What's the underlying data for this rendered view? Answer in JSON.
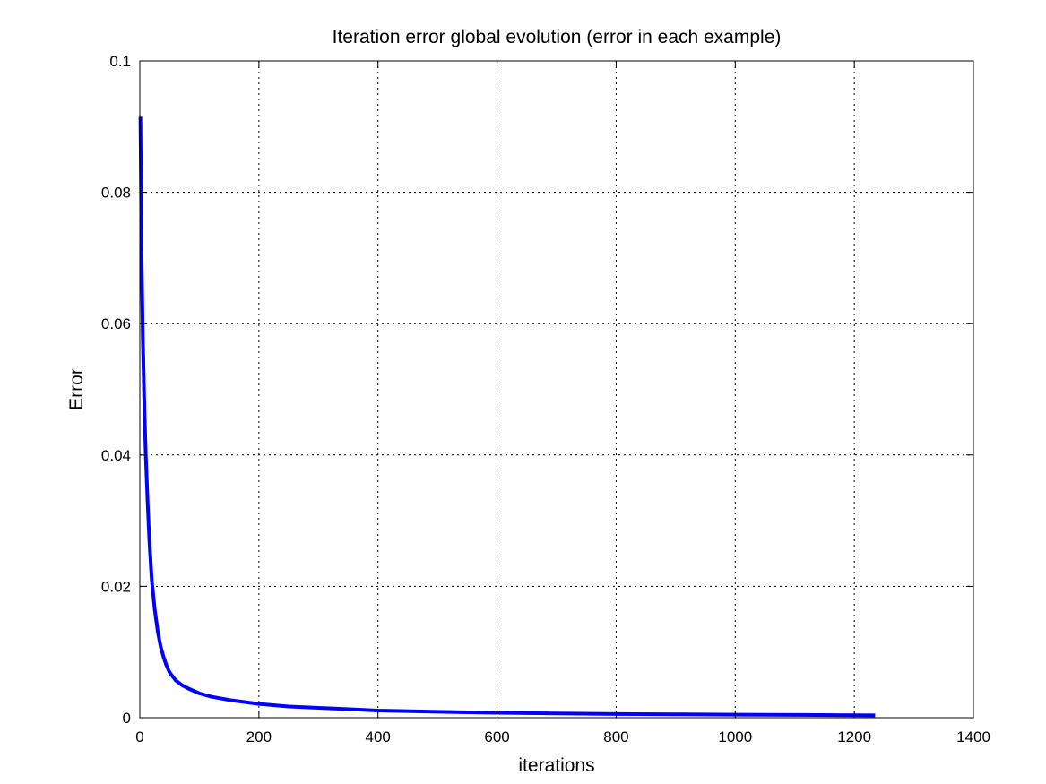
{
  "chart_data": {
    "type": "line",
    "title": "Iteration error global evolution (error in each example)",
    "xlabel": "iterations",
    "ylabel": "Error",
    "xlim": [
      0,
      1400
    ],
    "ylim": [
      0,
      0.1
    ],
    "xticks": [
      0,
      200,
      400,
      600,
      800,
      1000,
      1200,
      1400
    ],
    "yticks": [
      0,
      0.02,
      0.04,
      0.06,
      0.08,
      0.1
    ],
    "xtick_labels": [
      "0",
      "200",
      "400",
      "600",
      "800",
      "1000",
      "1200",
      "1400"
    ],
    "ytick_labels": [
      "0",
      "0.02",
      "0.04",
      "0.06",
      "0.08",
      "0.1"
    ],
    "grid": true,
    "series": [
      {
        "color": "#0000ff",
        "x": [
          1,
          3,
          5,
          8,
          10,
          13,
          16,
          20,
          25,
          30,
          35,
          40,
          45,
          50,
          60,
          70,
          80,
          100,
          120,
          150,
          200,
          250,
          300,
          400,
          500,
          600,
          700,
          800,
          900,
          1000,
          1100,
          1200,
          1235
        ],
        "y": [
          0.0915,
          0.07,
          0.058,
          0.046,
          0.04,
          0.033,
          0.027,
          0.021,
          0.0165,
          0.0132,
          0.0108,
          0.0092,
          0.0079,
          0.0069,
          0.0057,
          0.005,
          0.0045,
          0.0037,
          0.0032,
          0.0027,
          0.0021,
          0.0017,
          0.0015,
          0.0011,
          0.0009,
          0.00075,
          0.00065,
          0.00057,
          0.00051,
          0.00046,
          0.00042,
          0.00038,
          0.00036
        ]
      }
    ]
  }
}
